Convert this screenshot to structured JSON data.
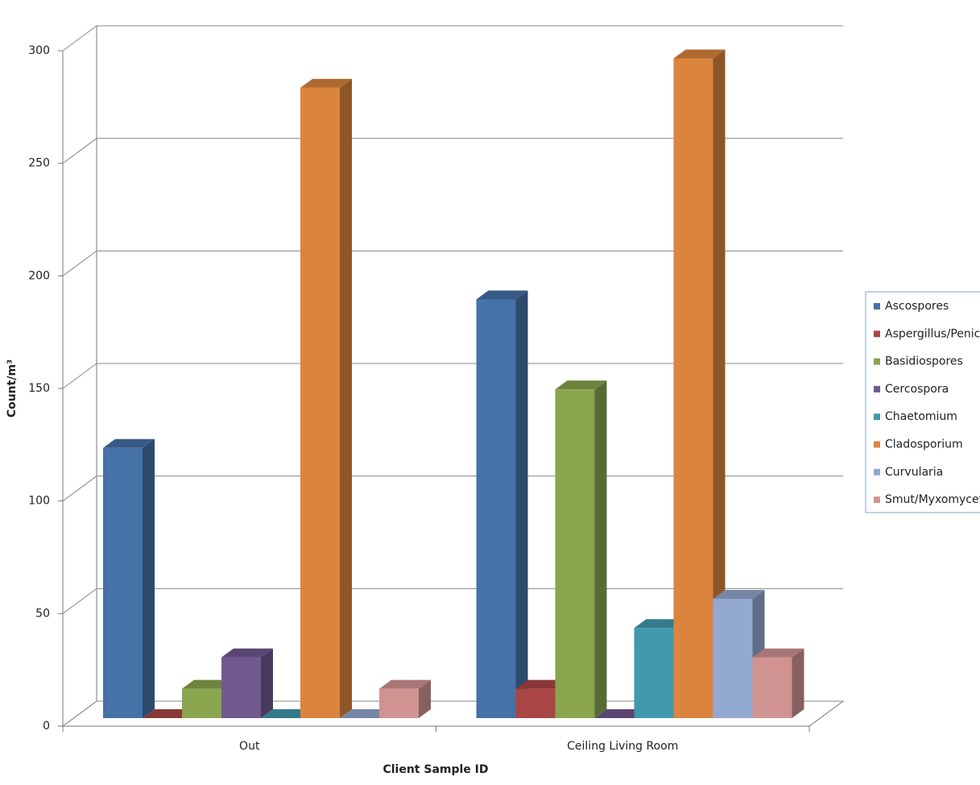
{
  "chart_data": {
    "type": "bar3d",
    "x_label": "Client Sample ID",
    "y_label": "Count/m³",
    "categories": [
      "Out",
      "Ceiling Living Room"
    ],
    "ylim": [
      0,
      300
    ],
    "yticks": [
      0,
      50,
      100,
      150,
      200,
      250,
      300
    ],
    "grid": true,
    "legend": "right",
    "series": [
      {
        "name": "Ascospores",
        "color": "#4572a7",
        "values": [
          120,
          186
        ]
      },
      {
        "name": "Aspergillus/Penicillium",
        "color": "#aa4643",
        "values": [
          0,
          13
        ]
      },
      {
        "name": "Basidiospores",
        "color": "#89a54e",
        "values": [
          13,
          146
        ]
      },
      {
        "name": "Cercospora",
        "color": "#71588f",
        "values": [
          27,
          0
        ]
      },
      {
        "name": "Chaetomium",
        "color": "#4198af",
        "values": [
          0,
          40
        ]
      },
      {
        "name": "Cladosporium",
        "color": "#db843d",
        "values": [
          280,
          293
        ]
      },
      {
        "name": "Curvularia",
        "color": "#93a9cf",
        "values": [
          0,
          53
        ]
      },
      {
        "name": "Smut/Myxomycetes",
        "color": "#d19392",
        "values": [
          13,
          27
        ]
      }
    ]
  }
}
